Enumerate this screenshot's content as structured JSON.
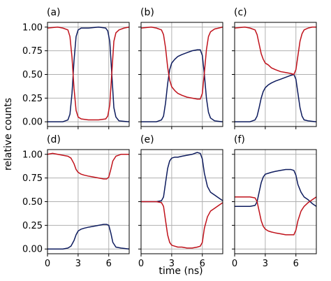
{
  "chart_data": {
    "type": "line",
    "xlabel": "time (ns)",
    "ylabel": "relative counts",
    "xlim": [
      0,
      8
    ],
    "ylim": [
      -0.05,
      1.05
    ],
    "xticks": [
      0,
      3,
      6
    ],
    "yticks": [
      0.0,
      0.25,
      0.5,
      0.75,
      1.0
    ],
    "ytick_labels": [
      "0.00",
      "0.25",
      "0.50",
      "0.75",
      "1.00"
    ],
    "grid": true,
    "series_colors": {
      "blue": "#0d1b5e",
      "red": "#c0121b"
    },
    "panels": [
      {
        "label": "(a)",
        "series": [
          {
            "color": "blue",
            "x": [
              0,
              1.5,
              2.0,
              2.2,
              2.4,
              2.6,
              2.8,
              3.0,
              3.3,
              4,
              5,
              5.7,
              5.9,
              6.1,
              6.3,
              6.5,
              6.7,
              7.0,
              8
            ],
            "y": [
              0.0,
              0.0,
              0.02,
              0.08,
              0.3,
              0.65,
              0.9,
              0.97,
              0.99,
              0.99,
              1.0,
              0.99,
              0.96,
              0.85,
              0.5,
              0.15,
              0.05,
              0.01,
              0.0
            ]
          },
          {
            "color": "red",
            "x": [
              0,
              1,
              1.5,
              2.0,
              2.2,
              2.4,
              2.6,
              2.8,
              3.0,
              3.3,
              4,
              5,
              5.7,
              5.9,
              6.1,
              6.3,
              6.5,
              6.7,
              7.0,
              7.5,
              8
            ],
            "y": [
              0.99,
              1.0,
              0.99,
              0.97,
              0.9,
              0.68,
              0.35,
              0.12,
              0.05,
              0.03,
              0.02,
              0.02,
              0.03,
              0.06,
              0.18,
              0.52,
              0.85,
              0.94,
              0.97,
              0.99,
              1.0
            ]
          }
        ]
      },
      {
        "label": "(b)",
        "series": [
          {
            "color": "blue",
            "x": [
              0,
              1.5,
              2.0,
              2.2,
              2.4,
              2.6,
              2.8,
              3.0,
              3.3,
              3.6,
              4,
              4.5,
              5,
              5.5,
              5.8,
              6.0,
              6.2,
              6.4,
              6.6,
              6.8,
              7.2,
              8
            ],
            "y": [
              0.0,
              0.0,
              0.02,
              0.06,
              0.2,
              0.4,
              0.55,
              0.62,
              0.66,
              0.69,
              0.71,
              0.73,
              0.75,
              0.76,
              0.76,
              0.7,
              0.5,
              0.25,
              0.1,
              0.04,
              0.01,
              0.0
            ]
          },
          {
            "color": "red",
            "x": [
              0,
              1,
              1.5,
              2.0,
              2.2,
              2.4,
              2.6,
              2.8,
              3.0,
              3.3,
              3.6,
              4,
              4.5,
              5,
              5.5,
              5.8,
              6.0,
              6.2,
              6.4,
              6.6,
              6.8,
              7.2,
              7.6,
              8
            ],
            "y": [
              0.99,
              1.0,
              0.99,
              0.97,
              0.92,
              0.78,
              0.58,
              0.44,
              0.37,
              0.33,
              0.3,
              0.28,
              0.26,
              0.25,
              0.24,
              0.24,
              0.3,
              0.52,
              0.76,
              0.9,
              0.95,
              0.98,
              0.99,
              1.0
            ]
          }
        ]
      },
      {
        "label": "(c)",
        "series": [
          {
            "color": "blue",
            "x": [
              0,
              1.5,
              2.0,
              2.2,
              2.4,
              2.6,
              2.8,
              3.0,
              3.3,
              3.6,
              4,
              4.5,
              5,
              5.5,
              5.8,
              6.0,
              6.2,
              6.4,
              6.6,
              6.8,
              7.2,
              8
            ],
            "y": [
              0.0,
              0.0,
              0.02,
              0.06,
              0.15,
              0.25,
              0.32,
              0.36,
              0.39,
              0.41,
              0.43,
              0.45,
              0.47,
              0.49,
              0.5,
              0.45,
              0.3,
              0.15,
              0.06,
              0.02,
              0.01,
              0.0
            ]
          },
          {
            "color": "red",
            "x": [
              0,
              1,
              1.5,
              2.0,
              2.2,
              2.4,
              2.6,
              2.8,
              3.0,
              3.3,
              3.6,
              4,
              4.5,
              5,
              5.5,
              5.8,
              6.0,
              6.2,
              6.4,
              6.6,
              6.8,
              7.2,
              7.6,
              8
            ],
            "y": [
              0.99,
              1.0,
              0.99,
              0.97,
              0.92,
              0.82,
              0.72,
              0.66,
              0.62,
              0.6,
              0.57,
              0.55,
              0.53,
              0.52,
              0.51,
              0.5,
              0.55,
              0.7,
              0.85,
              0.93,
              0.97,
              0.99,
              1.0,
              1.0
            ]
          }
        ]
      },
      {
        "label": "(d)",
        "series": [
          {
            "color": "blue",
            "x": [
              0,
              1.5,
              2.0,
              2.3,
              2.6,
              2.8,
              3.0,
              3.3,
              3.6,
              4,
              4.5,
              5,
              5.5,
              5.8,
              6.0,
              6.2,
              6.4,
              6.7,
              7.2,
              8
            ],
            "y": [
              0.0,
              0.0,
              0.01,
              0.03,
              0.09,
              0.15,
              0.19,
              0.21,
              0.22,
              0.23,
              0.24,
              0.25,
              0.26,
              0.26,
              0.25,
              0.17,
              0.07,
              0.02,
              0.01,
              0.0
            ]
          },
          {
            "color": "red",
            "x": [
              0,
              0.5,
              1,
              1.5,
              2.0,
              2.3,
              2.6,
              2.8,
              3.0,
              3.3,
              3.6,
              4,
              4.5,
              5,
              5.5,
              5.8,
              6.0,
              6.2,
              6.4,
              6.7,
              7.2,
              7.6,
              8
            ],
            "y": [
              1.0,
              1.01,
              1.0,
              0.99,
              0.98,
              0.96,
              0.9,
              0.84,
              0.81,
              0.79,
              0.78,
              0.77,
              0.76,
              0.75,
              0.74,
              0.74,
              0.76,
              0.84,
              0.93,
              0.98,
              1.0,
              1.0,
              1.0
            ]
          }
        ]
      },
      {
        "label": "(e)",
        "series": [
          {
            "color": "blue",
            "x": [
              0,
              1.5,
              2.0,
              2.2,
              2.4,
              2.6,
              2.8,
              3.0,
              3.3,
              3.6,
              4,
              4.5,
              5,
              5.5,
              5.8,
              6.0,
              6.2,
              6.5,
              6.8,
              7.2,
              7.6,
              8
            ],
            "y": [
              0.5,
              0.5,
              0.51,
              0.55,
              0.7,
              0.85,
              0.93,
              0.96,
              0.97,
              0.97,
              0.98,
              0.99,
              1.0,
              1.02,
              1.01,
              0.95,
              0.8,
              0.66,
              0.6,
              0.57,
              0.54,
              0.51
            ]
          },
          {
            "color": "red",
            "x": [
              0,
              1.5,
              2.0,
              2.2,
              2.4,
              2.6,
              2.8,
              3.0,
              3.3,
              3.6,
              4,
              4.5,
              5,
              5.5,
              5.8,
              6.0,
              6.2,
              6.5,
              6.8,
              7.2,
              7.6,
              8
            ],
            "y": [
              0.5,
              0.5,
              0.49,
              0.45,
              0.3,
              0.15,
              0.07,
              0.04,
              0.03,
              0.02,
              0.02,
              0.01,
              0.01,
              0.02,
              0.03,
              0.07,
              0.22,
              0.34,
              0.4,
              0.43,
              0.46,
              0.49
            ]
          }
        ]
      },
      {
        "label": "(f)",
        "series": [
          {
            "color": "blue",
            "x": [
              0,
              1,
              1.5,
              2.0,
              2.2,
              2.4,
              2.6,
              2.8,
              3.0,
              3.3,
              3.6,
              4,
              4.5,
              5,
              5.5,
              5.8,
              6.0,
              6.2,
              6.5,
              6.8,
              7.2,
              7.6,
              8
            ],
            "y": [
              0.45,
              0.45,
              0.45,
              0.46,
              0.5,
              0.6,
              0.7,
              0.76,
              0.79,
              0.8,
              0.81,
              0.82,
              0.83,
              0.84,
              0.84,
              0.83,
              0.78,
              0.68,
              0.6,
              0.55,
              0.52,
              0.48,
              0.45
            ]
          },
          {
            "color": "red",
            "x": [
              0,
              1,
              1.5,
              2.0,
              2.2,
              2.4,
              2.6,
              2.8,
              3.0,
              3.3,
              3.6,
              4,
              4.5,
              5,
              5.5,
              5.8,
              6.0,
              6.2,
              6.5,
              6.8,
              7.2,
              7.6,
              8
            ],
            "y": [
              0.55,
              0.55,
              0.55,
              0.54,
              0.5,
              0.4,
              0.3,
              0.24,
              0.21,
              0.19,
              0.18,
              0.17,
              0.16,
              0.15,
              0.15,
              0.15,
              0.2,
              0.3,
              0.4,
              0.45,
              0.49,
              0.52,
              0.55
            ]
          }
        ]
      }
    ]
  }
}
